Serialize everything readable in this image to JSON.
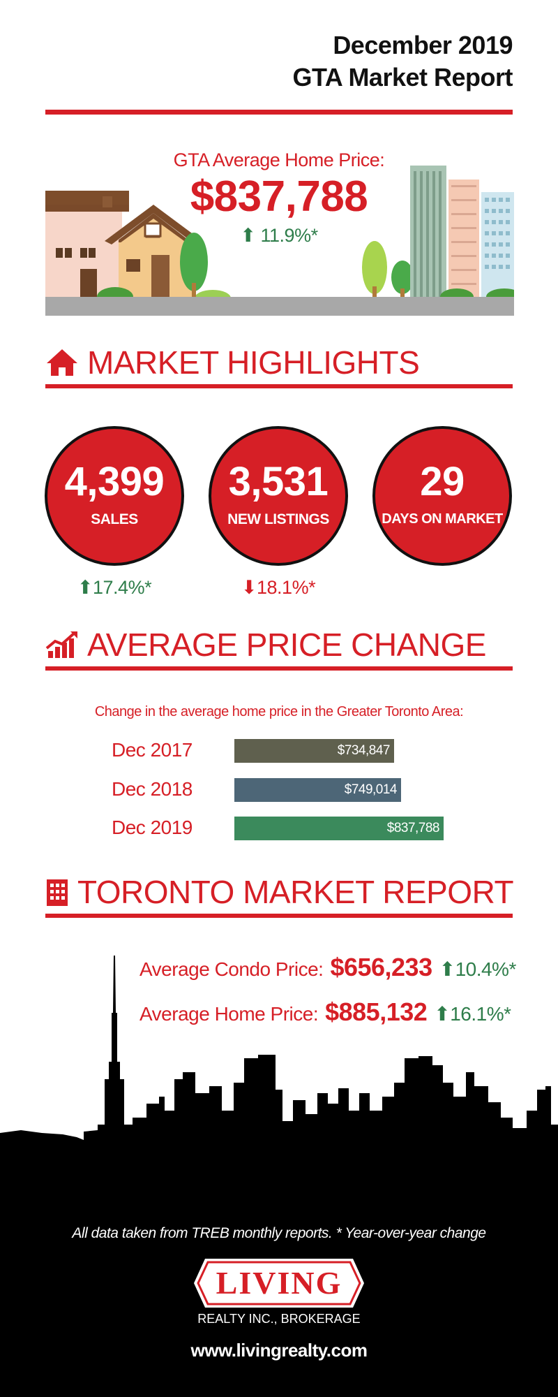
{
  "header": {
    "line1": "December 2019",
    "line2": "GTA Market Report"
  },
  "gta_average": {
    "label": "GTA Average Home Price:",
    "value": "$837,788",
    "change": "11.9%*",
    "direction": "up"
  },
  "sections": {
    "highlights": "MARKET HIGHLIGHTS",
    "price_change": "AVERAGE PRICE CHANGE",
    "toronto": "TORONTO MARKET REPORT"
  },
  "highlights": [
    {
      "value": "4,399",
      "label": "SALES",
      "change": "17.4%*",
      "direction": "up"
    },
    {
      "value": "3,531",
      "label": "NEW LISTINGS",
      "change": "18.1%*",
      "direction": "down"
    },
    {
      "value": "29",
      "label": "DAYS ON MARKET",
      "change": "",
      "direction": ""
    }
  ],
  "price_change_intro": "Change in the average home price in the Greater Toronto Area:",
  "chart_data": {
    "type": "bar",
    "orientation": "horizontal",
    "categories": [
      "Dec 2017",
      "Dec 2018",
      "Dec 2019"
    ],
    "values": [
      734847,
      749014,
      837788
    ],
    "value_labels": [
      "$734,847",
      "$749,014",
      "$837,788"
    ],
    "colors": [
      "#5f604e",
      "#4d6677",
      "#3b8a5c"
    ]
  },
  "toronto": {
    "condo_label": "Average Condo Price:",
    "condo_value": "$656,233",
    "condo_change": "10.4%*",
    "home_label": "Average Home Price:",
    "home_value": "$885,132",
    "home_change": "16.1%*"
  },
  "footer": {
    "note": "All data taken from TREB monthly reports.  * Year-over-year change",
    "logo_word": "LIVING",
    "logo_sub": "REALTY INC., BROKERAGE",
    "url": "www.livingrealty.com"
  },
  "colors": {
    "accent": "#d61f26",
    "up": "#2e7d4a",
    "down": "#d61f26"
  }
}
